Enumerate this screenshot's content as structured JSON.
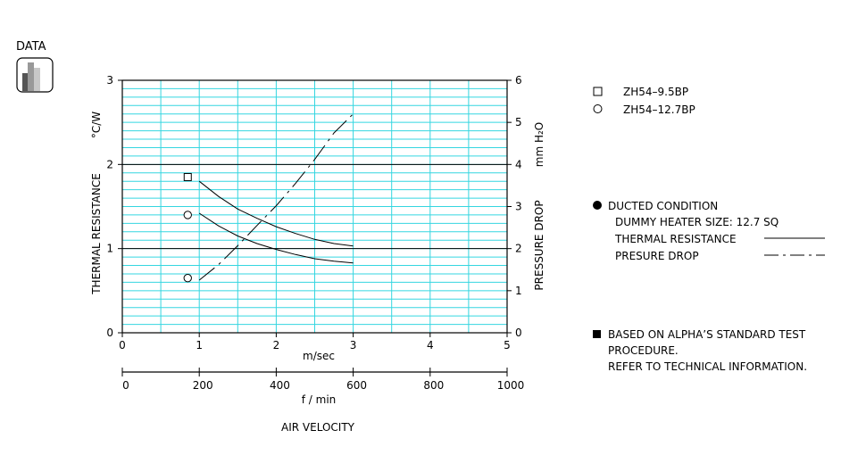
{
  "badge": {
    "label": "DATA",
    "icon": "bar-chart-icon"
  },
  "legend": {
    "items": [
      {
        "marker": "square",
        "label": "ZH54–9.5BP"
      },
      {
        "marker": "circle",
        "label": "ZH54–12.7BP"
      }
    ]
  },
  "conditions": {
    "title": "DUCTED CONDITION",
    "heater": "DUMMY HEATER SIZE: 12.7 SQ",
    "thermal_label": "THERMAL RESISTANCE",
    "pressure_label": "PRESURE DROP"
  },
  "note": {
    "line1": "BASED ON ALPHA’S STANDARD TEST",
    "line2": "PROCEDURE.",
    "line3": "REFER TO TECHNICAL INFORMATION."
  },
  "chart_data": {
    "type": "line",
    "xlabel": "AIR VELOCITY",
    "x_axis_top": {
      "unit": "m/sec",
      "range": [
        0,
        5
      ],
      "ticks": [
        "0",
        "1",
        "2",
        "3",
        "4",
        "5"
      ]
    },
    "x_axis_bottom": {
      "unit": "f / min",
      "range": [
        0,
        1000
      ],
      "ticks": [
        "0",
        "200",
        "400",
        "600",
        "800",
        "1000"
      ]
    },
    "y_left": {
      "label": "THERMAL RESISTANCE",
      "unit": "°C/W",
      "range": [
        0,
        3
      ],
      "ticks": [
        "0",
        "1",
        "2",
        "3"
      ]
    },
    "y_right": {
      "label": "PRESSURE DROP",
      "unit": "mm H₂O",
      "range": [
        0,
        6
      ],
      "ticks": [
        "0",
        "1",
        "2",
        "3",
        "4",
        "5",
        "6"
      ]
    },
    "grid": true,
    "series": [
      {
        "name": "ZH54–9.5BP",
        "quantity": "thermal_resistance",
        "axis": "left",
        "marker": "square",
        "style": "solid",
        "x": [
          1.0,
          1.25,
          1.5,
          1.75,
          2.0,
          2.25,
          2.5,
          2.75,
          3.0
        ],
        "y": [
          1.8,
          1.62,
          1.47,
          1.36,
          1.26,
          1.18,
          1.11,
          1.06,
          1.03
        ]
      },
      {
        "name": "ZH54–12.7BP",
        "quantity": "thermal_resistance",
        "axis": "left",
        "marker": "circle",
        "style": "solid",
        "x": [
          1.0,
          1.25,
          1.5,
          1.75,
          2.0,
          2.25,
          2.5,
          2.75,
          3.0
        ],
        "y": [
          1.42,
          1.27,
          1.15,
          1.06,
          0.99,
          0.93,
          0.88,
          0.85,
          0.83
        ]
      },
      {
        "name": "ZH54–12.7BP",
        "quantity": "pressure_drop",
        "axis": "right",
        "marker": "circle",
        "style": "dash-dot",
        "x": [
          1.0,
          1.25,
          1.5,
          1.75,
          2.0,
          2.25,
          2.5,
          2.75,
          3.0
        ],
        "y": [
          1.25,
          1.62,
          2.07,
          2.55,
          3.02,
          3.55,
          4.12,
          4.75,
          5.2
        ]
      }
    ],
    "markers": [
      {
        "shape": "square",
        "x": 0.85,
        "y": 1.85,
        "axis": "left"
      },
      {
        "shape": "circle",
        "x": 0.85,
        "y": 1.4,
        "axis": "left"
      },
      {
        "shape": "circle",
        "x": 0.85,
        "y": 0.65,
        "axis": "left"
      }
    ]
  }
}
